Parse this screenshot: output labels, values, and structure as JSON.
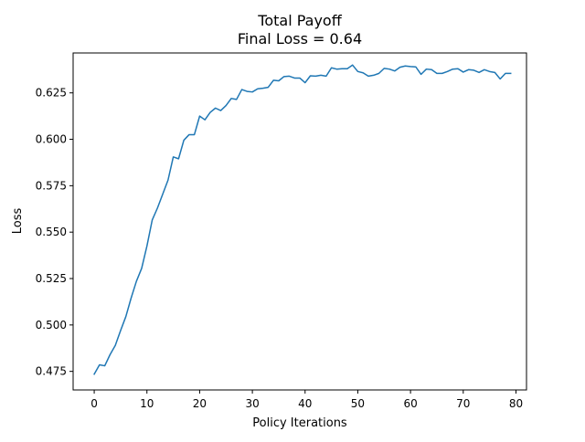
{
  "chart_data": {
    "type": "line",
    "title": "Total Payoff",
    "subtitle": "Final Loss = 0.64",
    "xlabel": "Policy Iterations",
    "ylabel": "Loss",
    "xlim": [
      -4,
      82
    ],
    "ylim": [
      0.465,
      0.6465
    ],
    "xticks": [
      0,
      10,
      20,
      30,
      40,
      50,
      60,
      70,
      80
    ],
    "xtick_labels": [
      "0",
      "10",
      "20",
      "30",
      "40",
      "50",
      "60",
      "70",
      "80"
    ],
    "yticks": [
      0.475,
      0.5,
      0.525,
      0.55,
      0.575,
      0.6,
      0.625
    ],
    "ytick_labels": [
      "0.475",
      "0.500",
      "0.525",
      "0.550",
      "0.575",
      "0.600",
      "0.625"
    ],
    "grid": false,
    "line_color": "#1f77b4",
    "series": [
      {
        "x": [
          0,
          1,
          2,
          3,
          4,
          5,
          6,
          7,
          8,
          9,
          10,
          11,
          12,
          13,
          14,
          15,
          16,
          17,
          18,
          19,
          20,
          21,
          22,
          23,
          24,
          25,
          26,
          27,
          28,
          29,
          30,
          31,
          32,
          33,
          34,
          35,
          36,
          37,
          38,
          39,
          40,
          41,
          42,
          43,
          44,
          45,
          46,
          47,
          48,
          49,
          50,
          51,
          52,
          53,
          54,
          55,
          56,
          57,
          58,
          59,
          60,
          61,
          62,
          63,
          64,
          65,
          66,
          67,
          68,
          69,
          70,
          71,
          72,
          73,
          74,
          75,
          76,
          77,
          78,
          79
        ],
        "values": [
          0.4735,
          0.4785,
          0.478,
          0.484,
          0.489,
          0.497,
          0.5045,
          0.5145,
          0.5235,
          0.5305,
          0.5425,
          0.5565,
          0.563,
          0.5705,
          0.578,
          0.5905,
          0.5895,
          0.5995,
          0.6025,
          0.6025,
          0.6125,
          0.6105,
          0.6145,
          0.6168,
          0.6155,
          0.6182,
          0.622,
          0.6215,
          0.6268,
          0.6258,
          0.6255,
          0.6272,
          0.6275,
          0.628,
          0.6318,
          0.6315,
          0.6338,
          0.634,
          0.633,
          0.633,
          0.6305,
          0.6342,
          0.634,
          0.6345,
          0.634,
          0.6385,
          0.6378,
          0.638,
          0.638,
          0.64,
          0.6365,
          0.6358,
          0.634,
          0.6345,
          0.6355,
          0.6382,
          0.6378,
          0.6368,
          0.6388,
          0.6395,
          0.6392,
          0.639,
          0.635,
          0.6378,
          0.6375,
          0.6355,
          0.6355,
          0.6365,
          0.6378,
          0.638,
          0.6362,
          0.6375,
          0.6372,
          0.636,
          0.6375,
          0.6365,
          0.636,
          0.6325,
          0.6355,
          0.6355
        ]
      }
    ]
  }
}
